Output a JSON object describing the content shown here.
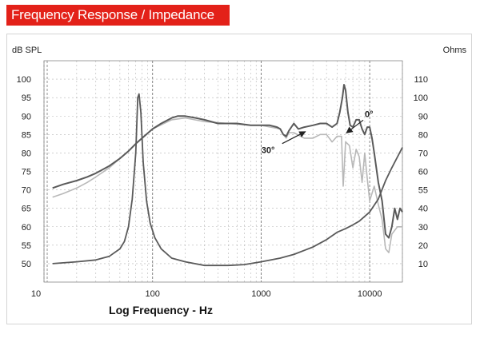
{
  "header": {
    "title": "Frequency Response / Impedance"
  },
  "colors": {
    "banner": "#e32119",
    "banner_text": "#ffffff",
    "grid": "#b5b5b5",
    "curve_dark": "#5a5a5a",
    "curve_light": "#b8b8b8"
  },
  "chart_data": {
    "type": "line",
    "title": "",
    "xlabel": "Log Frequency - Hz",
    "ylabel": "dB SPL",
    "y2label": "Ohms",
    "xscale": "log",
    "xlim": [
      10,
      20000
    ],
    "ylim": [
      45,
      105
    ],
    "y2lim": [
      0,
      120
    ],
    "grid": true,
    "x_tick_labels": [
      {
        "value": 10,
        "label": "10"
      },
      {
        "value": 100,
        "label": "100"
      },
      {
        "value": 1000,
        "label": "1000"
      },
      {
        "value": 10000,
        "label": "10000"
      }
    ],
    "y_ticks": [
      50,
      55,
      60,
      65,
      70,
      75,
      80,
      85,
      90,
      95,
      100
    ],
    "y2_ticks": [
      10,
      20,
      30,
      40,
      55,
      60,
      70,
      80,
      90,
      100,
      110
    ],
    "annotations": [
      {
        "text": "0°",
        "points_to": {
          "x": 6000,
          "y": 85
        }
      },
      {
        "text": "30°",
        "points_to": {
          "x": 2600,
          "y": 86
        }
      }
    ],
    "series": [
      {
        "role": "on-axis SPL (0°)",
        "axis": "left",
        "points": [
          [
            12,
            70.5
          ],
          [
            15,
            71.5
          ],
          [
            20,
            72.5
          ],
          [
            25,
            73.5
          ],
          [
            30,
            74.5
          ],
          [
            40,
            76.5
          ],
          [
            50,
            78.5
          ],
          [
            60,
            80.5
          ],
          [
            70,
            82.5
          ],
          [
            80,
            84
          ],
          [
            100,
            86.5
          ],
          [
            120,
            88
          ],
          [
            150,
            89.5
          ],
          [
            170,
            90
          ],
          [
            200,
            90
          ],
          [
            250,
            89.5
          ],
          [
            300,
            89
          ],
          [
            400,
            88
          ],
          [
            500,
            88
          ],
          [
            600,
            88
          ],
          [
            800,
            87.5
          ],
          [
            1000,
            87.5
          ],
          [
            1200,
            87.5
          ],
          [
            1400,
            87
          ],
          [
            1500,
            86.5
          ],
          [
            1600,
            85
          ],
          [
            1700,
            84.5
          ],
          [
            1800,
            86
          ],
          [
            2000,
            88
          ],
          [
            2200,
            86.5
          ],
          [
            2500,
            87
          ],
          [
            3000,
            87.5
          ],
          [
            3500,
            88
          ],
          [
            4000,
            88
          ],
          [
            4500,
            87
          ],
          [
            5000,
            88
          ],
          [
            5300,
            91
          ],
          [
            5600,
            95
          ],
          [
            5800,
            98.5
          ],
          [
            6000,
            97
          ],
          [
            6300,
            91
          ],
          [
            6600,
            87.5
          ],
          [
            7000,
            87
          ],
          [
            7500,
            89
          ],
          [
            8000,
            89
          ],
          [
            8500,
            86.5
          ],
          [
            9000,
            85
          ],
          [
            9500,
            87
          ],
          [
            10000,
            87
          ],
          [
            10500,
            84
          ],
          [
            11000,
            80
          ],
          [
            12000,
            72
          ],
          [
            13000,
            67
          ],
          [
            14000,
            58
          ],
          [
            15000,
            57
          ],
          [
            16000,
            60
          ],
          [
            17000,
            65
          ],
          [
            18000,
            62
          ],
          [
            19000,
            65
          ],
          [
            20000,
            64
          ]
        ]
      },
      {
        "role": "30° off-axis SPL",
        "axis": "left",
        "points": [
          [
            12,
            68
          ],
          [
            15,
            69
          ],
          [
            20,
            70.5
          ],
          [
            25,
            72
          ],
          [
            30,
            73.5
          ],
          [
            40,
            76
          ],
          [
            50,
            78.5
          ],
          [
            60,
            80.5
          ],
          [
            70,
            82.5
          ],
          [
            80,
            84
          ],
          [
            100,
            86.5
          ],
          [
            150,
            89
          ],
          [
            200,
            89.5
          ],
          [
            300,
            88.5
          ],
          [
            500,
            88
          ],
          [
            800,
            87.5
          ],
          [
            1000,
            87.5
          ],
          [
            1500,
            86.5
          ],
          [
            1600,
            85
          ],
          [
            1700,
            84
          ],
          [
            1800,
            85.5
          ],
          [
            2000,
            85.5
          ],
          [
            2500,
            84
          ],
          [
            3000,
            84
          ],
          [
            3500,
            85
          ],
          [
            4000,
            85
          ],
          [
            4500,
            83
          ],
          [
            5000,
            84.5
          ],
          [
            5500,
            84.5
          ],
          [
            5700,
            71
          ],
          [
            6000,
            83
          ],
          [
            6500,
            82
          ],
          [
            7000,
            76
          ],
          [
            7500,
            81
          ],
          [
            8000,
            79
          ],
          [
            8500,
            72
          ],
          [
            9000,
            80
          ],
          [
            9500,
            73
          ],
          [
            10000,
            67
          ],
          [
            11000,
            71
          ],
          [
            12000,
            66
          ],
          [
            13000,
            62
          ],
          [
            14000,
            54
          ],
          [
            15000,
            53
          ],
          [
            16000,
            58
          ],
          [
            18000,
            60
          ],
          [
            20000,
            60
          ]
        ]
      },
      {
        "role": "impedance",
        "axis": "right",
        "points": [
          [
            12,
            10
          ],
          [
            20,
            11
          ],
          [
            30,
            12
          ],
          [
            40,
            14
          ],
          [
            50,
            18
          ],
          [
            55,
            22
          ],
          [
            60,
            30
          ],
          [
            65,
            45
          ],
          [
            70,
            70
          ],
          [
            73,
            100
          ],
          [
            75,
            102
          ],
          [
            78,
            92
          ],
          [
            82,
            65
          ],
          [
            88,
            44
          ],
          [
            95,
            32
          ],
          [
            105,
            24
          ],
          [
            120,
            18
          ],
          [
            150,
            13
          ],
          [
            200,
            11
          ],
          [
            300,
            9
          ],
          [
            500,
            9
          ],
          [
            700,
            9.5
          ],
          [
            1000,
            11
          ],
          [
            1500,
            13
          ],
          [
            2000,
            15
          ],
          [
            3000,
            19
          ],
          [
            4000,
            23
          ],
          [
            5000,
            27
          ],
          [
            6000,
            29
          ],
          [
            7000,
            31
          ],
          [
            8000,
            33
          ],
          [
            10000,
            38
          ],
          [
            12000,
            45
          ],
          [
            14000,
            55
          ],
          [
            16000,
            62
          ],
          [
            20000,
            73
          ]
        ]
      }
    ]
  }
}
